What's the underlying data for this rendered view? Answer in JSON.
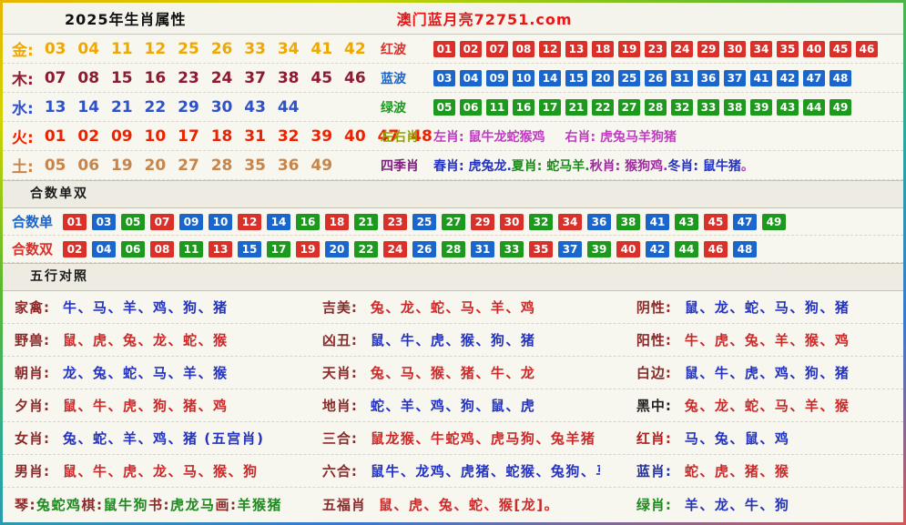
{
  "header": {
    "title": "2025年生肖属性",
    "site": "澳门蓝月亮72751.com",
    "site_color": "#e81717"
  },
  "colors": {
    "r": "#d9302a",
    "b": "#1b66cc",
    "g": "#1d9a1d"
  },
  "elements": [
    {
      "key": "gold",
      "label": "金:",
      "numbers": "03 04 11 12 25 26 33 34 41 42",
      "color": "#f0a800"
    },
    {
      "key": "wood",
      "label": "木:",
      "numbers": "07 08 15 16 23 24 37 38 45 46",
      "color": "#8e1b32"
    },
    {
      "key": "water",
      "label": "水:",
      "numbers": "13 14 21 22 29 30 43 44",
      "color": "#2e51cc"
    },
    {
      "key": "fire",
      "label": "火:",
      "numbers": "01 02 09 10 17 18 31 32 39 40 47 48",
      "color": "#ee2200"
    },
    {
      "key": "earth",
      "label": "土:",
      "numbers": "05 06 19 20 27 28 35 36 49",
      "color": "#c8854a"
    }
  ],
  "waves": [
    {
      "key": "red-wave",
      "label": "红波",
      "wave": "r",
      "numbers": [
        "01",
        "02",
        "07",
        "08",
        "12",
        "13",
        "18",
        "19",
        "23",
        "24",
        "29",
        "30",
        "34",
        "35",
        "40",
        "45",
        "46"
      ]
    },
    {
      "key": "blue-wave",
      "label": "蓝波",
      "wave": "b",
      "numbers": [
        "03",
        "04",
        "09",
        "10",
        "14",
        "15",
        "20",
        "25",
        "26",
        "31",
        "36",
        "37",
        "41",
        "42",
        "47",
        "48"
      ]
    },
    {
      "key": "green-wave",
      "label": "绿波",
      "wave": "g",
      "numbers": [
        "05",
        "06",
        "11",
        "16",
        "17",
        "21",
        "22",
        "27",
        "28",
        "32",
        "33",
        "38",
        "39",
        "43",
        "44",
        "49"
      ]
    }
  ],
  "zuoyou": {
    "label": "左右肖",
    "label_color": "#97a000",
    "segments": [
      {
        "text": "左肖: 鼠牛龙蛇猴鸡",
        "color": "#c03cc0"
      },
      {
        "text": "右肖: 虎兔马羊狗猪",
        "color": "#c03cc0"
      }
    ]
  },
  "siji": {
    "label": "四季肖",
    "label_color": "#7c1f7c",
    "segments": [
      {
        "text": "春肖: 虎兔龙.",
        "color": "#2433c0"
      },
      {
        "text": "夏肖: 蛇马羊.",
        "color": "#1d8a1d"
      },
      {
        "text": "秋肖: 猴狗鸡.",
        "color": "#a02aa0"
      },
      {
        "text": "冬肖: 鼠牛猪",
        "color": "#2433c0"
      },
      {
        "text": "。",
        "color": "#c03cc0"
      }
    ]
  },
  "hesum": {
    "header": "合数单双",
    "rows": [
      {
        "key": "hesum-odd",
        "label": "合数单",
        "label_color": "#1b66cc",
        "badges": [
          {
            "n": "01",
            "w": "r"
          },
          {
            "n": "03",
            "w": "b"
          },
          {
            "n": "05",
            "w": "g"
          },
          {
            "n": "07",
            "w": "r"
          },
          {
            "n": "09",
            "w": "b"
          },
          {
            "n": "10",
            "w": "b"
          },
          {
            "n": "12",
            "w": "r"
          },
          {
            "n": "14",
            "w": "b"
          },
          {
            "n": "16",
            "w": "g"
          },
          {
            "n": "18",
            "w": "r"
          },
          {
            "n": "21",
            "w": "g"
          },
          {
            "n": "23",
            "w": "r"
          },
          {
            "n": "25",
            "w": "b"
          },
          {
            "n": "27",
            "w": "g"
          },
          {
            "n": "29",
            "w": "r"
          },
          {
            "n": "30",
            "w": "r"
          },
          {
            "n": "32",
            "w": "g"
          },
          {
            "n": "34",
            "w": "r"
          },
          {
            "n": "36",
            "w": "b"
          },
          {
            "n": "38",
            "w": "g"
          },
          {
            "n": "41",
            "w": "b"
          },
          {
            "n": "43",
            "w": "g"
          },
          {
            "n": "45",
            "w": "r"
          },
          {
            "n": "47",
            "w": "b"
          },
          {
            "n": "49",
            "w": "g"
          }
        ]
      },
      {
        "key": "hesum-even",
        "label": "合数双",
        "label_color": "#d9302a",
        "badges": [
          {
            "n": "02",
            "w": "r"
          },
          {
            "n": "04",
            "w": "b"
          },
          {
            "n": "06",
            "w": "g"
          },
          {
            "n": "08",
            "w": "r"
          },
          {
            "n": "11",
            "w": "g"
          },
          {
            "n": "13",
            "w": "r"
          },
          {
            "n": "15",
            "w": "b"
          },
          {
            "n": "17",
            "w": "g"
          },
          {
            "n": "19",
            "w": "r"
          },
          {
            "n": "20",
            "w": "b"
          },
          {
            "n": "22",
            "w": "g"
          },
          {
            "n": "24",
            "w": "r"
          },
          {
            "n": "26",
            "w": "b"
          },
          {
            "n": "28",
            "w": "g"
          },
          {
            "n": "31",
            "w": "b"
          },
          {
            "n": "33",
            "w": "g"
          },
          {
            "n": "35",
            "w": "r"
          },
          {
            "n": "37",
            "w": "b"
          },
          {
            "n": "39",
            "w": "g"
          },
          {
            "n": "40",
            "w": "r"
          },
          {
            "n": "42",
            "w": "b"
          },
          {
            "n": "44",
            "w": "g"
          },
          {
            "n": "46",
            "w": "r"
          },
          {
            "n": "48",
            "w": "b"
          }
        ]
      }
    ]
  },
  "wuxing": {
    "header": "五行对照",
    "default_label_color": "#8c2a2a",
    "rows": [
      [
        {
          "key": "jiaqin",
          "label": "家禽:",
          "segments": [
            {
              "text": "牛、马、羊、鸡、狗、猪",
              "color": "#2433c0"
            }
          ]
        },
        {
          "key": "jimei",
          "label": "吉美:",
          "segments": [
            {
              "text": "兔、龙、蛇、马、羊、鸡",
              "color": "#cc2a2a"
            }
          ]
        },
        {
          "key": "yinxing",
          "label": "阴性:",
          "segments": [
            {
              "text": "鼠、龙、蛇、马、狗、猪",
              "color": "#2433c0"
            }
          ]
        }
      ],
      [
        {
          "key": "yeshou",
          "label": "野兽:",
          "segments": [
            {
              "text": "鼠、虎、兔、龙、蛇、猴",
              "color": "#cc2a2a"
            }
          ]
        },
        {
          "key": "xiongchou",
          "label": "凶丑:",
          "segments": [
            {
              "text": "鼠、牛、虎、猴、狗、猪",
              "color": "#2433c0"
            }
          ]
        },
        {
          "key": "yangxing",
          "label": "阳性:",
          "segments": [
            {
              "text": "牛、虎、兔、羊、猴、鸡",
              "color": "#cc2a2a"
            }
          ]
        }
      ],
      [
        {
          "key": "chaoxiao",
          "label": "朝肖:",
          "segments": [
            {
              "text": "龙、兔、蛇、马、羊、猴",
              "color": "#2433c0"
            }
          ]
        },
        {
          "key": "tianxiao",
          "label": "天肖:",
          "segments": [
            {
              "text": "兔、马、猴、猪、牛、龙",
              "color": "#cc2a2a"
            }
          ]
        },
        {
          "key": "baibian",
          "label": "白边:",
          "segments": [
            {
              "text": "鼠、牛、虎、鸡、狗、猪",
              "color": "#2433c0"
            }
          ]
        }
      ],
      [
        {
          "key": "xixiao",
          "label": "夕肖:",
          "segments": [
            {
              "text": "鼠、牛、虎、狗、猪、鸡",
              "color": "#cc2a2a"
            }
          ]
        },
        {
          "key": "dixiao",
          "label": "地肖:",
          "segments": [
            {
              "text": "蛇、羊、鸡、狗、鼠、虎",
              "color": "#2433c0"
            }
          ]
        },
        {
          "key": "heizhong",
          "label": "黑中:",
          "label_color": "#222222",
          "segments": [
            {
              "text": "兔、龙、蛇、马、羊、猴",
              "color": "#cc2a2a"
            }
          ]
        }
      ],
      [
        {
          "key": "nvxiao",
          "label": "女肖:",
          "segments": [
            {
              "text": "兔、蛇、羊、鸡、猪 (五宫肖)",
              "color": "#2433c0"
            }
          ]
        },
        {
          "key": "sanhe",
          "label": "三合:",
          "segments": [
            {
              "text": "鼠龙猴、牛蛇鸡、虎马狗、兔羊猪",
              "color": "#cc2a2a"
            }
          ]
        },
        {
          "key": "hongxiao",
          "label": "红肖:",
          "label_color": "#b02020",
          "segments": [
            {
              "text": "马、兔、鼠、鸡",
              "color": "#2433c0"
            }
          ]
        }
      ],
      [
        {
          "key": "nanxiao",
          "label": "男肖:",
          "segments": [
            {
              "text": "鼠、牛、虎、龙、马、猴、狗",
              "color": "#cc2a2a"
            }
          ]
        },
        {
          "key": "liuhe",
          "label": "六合:",
          "segments": [
            {
              "text": "鼠牛、龙鸡、虎猪、蛇猴、兔狗、马羊",
              "color": "#2433c0"
            }
          ]
        },
        {
          "key": "lanxiao",
          "label": "蓝肖:",
          "label_color": "#24339e",
          "segments": [
            {
              "text": "蛇、虎、猪、猴",
              "color": "#cc2a2a"
            }
          ]
        }
      ],
      [
        {
          "key": "qinqishuhua",
          "label": "",
          "segments": [
            {
              "text": "琴: ",
              "color": "#8c2a2a"
            },
            {
              "text": "兔蛇鸡 ",
              "color": "#1d8a1d"
            },
            {
              "text": "棋: ",
              "color": "#8c2a2a"
            },
            {
              "text": "鼠牛狗 ",
              "color": "#1d8a1d"
            },
            {
              "text": "书: ",
              "color": "#8c2a2a"
            },
            {
              "text": "虎龙马 ",
              "color": "#1d8a1d"
            },
            {
              "text": "画: ",
              "color": "#8c2a2a"
            },
            {
              "text": "羊猴猪",
              "color": "#1d8a1d"
            }
          ]
        },
        {
          "key": "wufuxiao",
          "label": "五福肖",
          "segments": [
            {
              "text": "鼠、虎、兔、蛇、猴[龙]。",
              "color": "#cc2a2a"
            }
          ]
        },
        {
          "key": "lvxiao",
          "label": "绿肖:",
          "label_color": "#1d8a1d",
          "segments": [
            {
              "text": "羊、龙、牛、狗",
              "color": "#2433c0"
            }
          ]
        }
      ]
    ]
  }
}
